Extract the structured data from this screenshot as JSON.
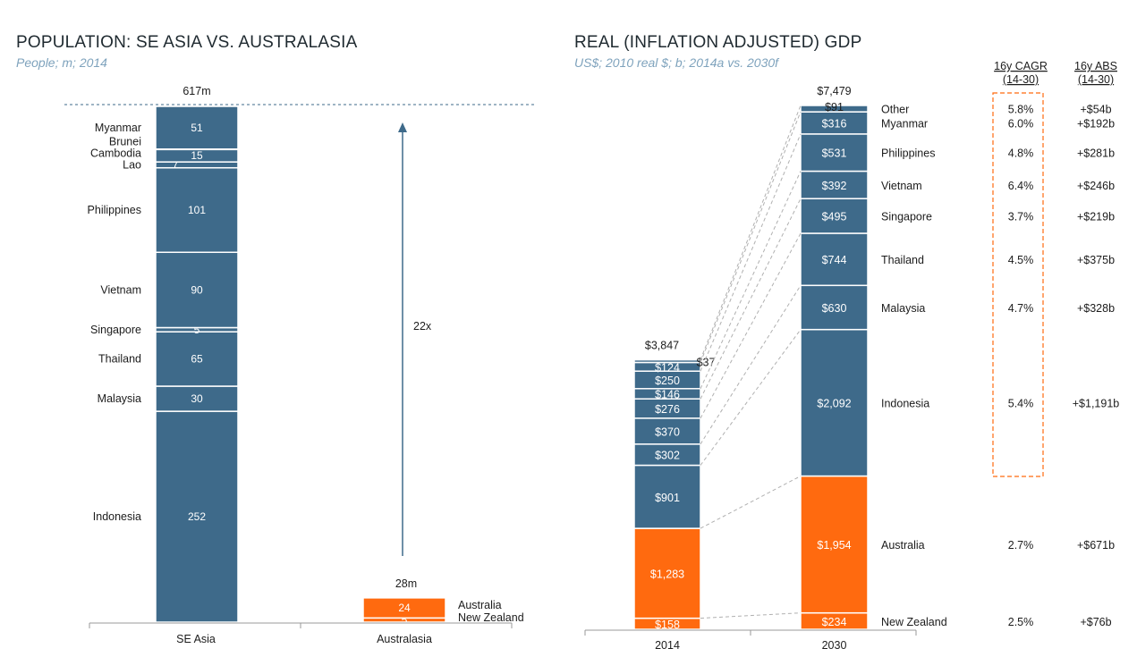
{
  "colors": {
    "se_asia": "#3e6a8a",
    "australasia": "#ff6a0f",
    "axis": "#999999",
    "dash": "#888888",
    "cagr_box": "#ff6a0f"
  },
  "chart_data": [
    {
      "type": "bar",
      "stacked": true,
      "title": "POPULATION: SE ASIA VS. AUSTRALASIA",
      "subtitle": "People; m; 2014",
      "categories": [
        "SE Asia",
        "Australasia"
      ],
      "totals": [
        "617m",
        "28m"
      ],
      "multiple_label": "22x",
      "se_asia_segments": [
        {
          "name": "Indonesia",
          "value": 252,
          "label": "252"
        },
        {
          "name": "Malaysia",
          "value": 30,
          "label": "30"
        },
        {
          "name": "Thailand",
          "value": 65,
          "label": "65"
        },
        {
          "name": "Singapore",
          "value": 5,
          "label": "5"
        },
        {
          "name": "Vietnam",
          "value": 90,
          "label": "90"
        },
        {
          "name": "Philippines",
          "value": 101,
          "label": "101"
        },
        {
          "name": "Lao",
          "value": 7,
          "label": "7"
        },
        {
          "name": "Cambodia",
          "value": 15,
          "label": "15"
        },
        {
          "name": "Brunei",
          "value": 0.4,
          "label": "0"
        },
        {
          "name": "Myanmar",
          "value": 51,
          "label": "51"
        }
      ],
      "australasia_segments": [
        {
          "name": "New Zealand",
          "value": 5,
          "label": "5"
        },
        {
          "name": "Australia",
          "value": 24,
          "label": "24"
        }
      ]
    },
    {
      "type": "bar",
      "stacked": true,
      "title": "REAL (INFLATION ADJUSTED) GDP",
      "subtitle": "US$; 2010 real $; b; 2014a vs. 2030f",
      "categories": [
        "2014",
        "2030"
      ],
      "totals": [
        "$3,847",
        "$7,479"
      ],
      "column_headers": {
        "cagr": [
          "16y CAGR",
          "(14-30)"
        ],
        "abs": [
          "16y ABS",
          "(14-30)"
        ]
      },
      "series": [
        {
          "name": "New Zealand",
          "v2014": 158,
          "l2014": "$158",
          "v2030": 234,
          "l2030": "$234",
          "cagr": "2.5%",
          "abs": "+$76b"
        },
        {
          "name": "Australia",
          "v2014": 1283,
          "l2014": "$1,283",
          "v2030": 1954,
          "l2030": "$1,954",
          "cagr": "2.7%",
          "abs": "+$671b"
        },
        {
          "name": "Indonesia",
          "v2014": 901,
          "l2014": "$901",
          "v2030": 2092,
          "l2030": "$2,092",
          "cagr": "5.4%",
          "abs": "+$1,191b"
        },
        {
          "name": "Malaysia",
          "v2014": 302,
          "l2014": "$302",
          "v2030": 630,
          "l2030": "$630",
          "cagr": "4.7%",
          "abs": "+$328b"
        },
        {
          "name": "Thailand",
          "v2014": 370,
          "l2014": "$370",
          "v2030": 744,
          "l2030": "$744",
          "cagr": "4.5%",
          "abs": "+$375b"
        },
        {
          "name": "Singapore",
          "v2014": 276,
          "l2014": "$276",
          "v2030": 495,
          "l2030": "$495",
          "cagr": "3.7%",
          "abs": "+$219b"
        },
        {
          "name": "Vietnam",
          "v2014": 146,
          "l2014": "$146",
          "v2030": 392,
          "l2030": "$392",
          "cagr": "6.4%",
          "abs": "+$246b"
        },
        {
          "name": "Philippines",
          "v2014": 250,
          "l2014": "$250",
          "v2030": 531,
          "l2030": "$531",
          "cagr": "4.8%",
          "abs": "+$281b"
        },
        {
          "name": "Myanmar",
          "v2014": 124,
          "l2014": "$124",
          "v2030": 316,
          "l2030": "$316",
          "cagr": "6.0%",
          "abs": "+$192b"
        },
        {
          "name": "Other",
          "v2014": 37,
          "l2014": "$37",
          "v2030": 91,
          "l2030": "$91",
          "cagr": "5.8%",
          "abs": "+$54b"
        }
      ]
    }
  ]
}
